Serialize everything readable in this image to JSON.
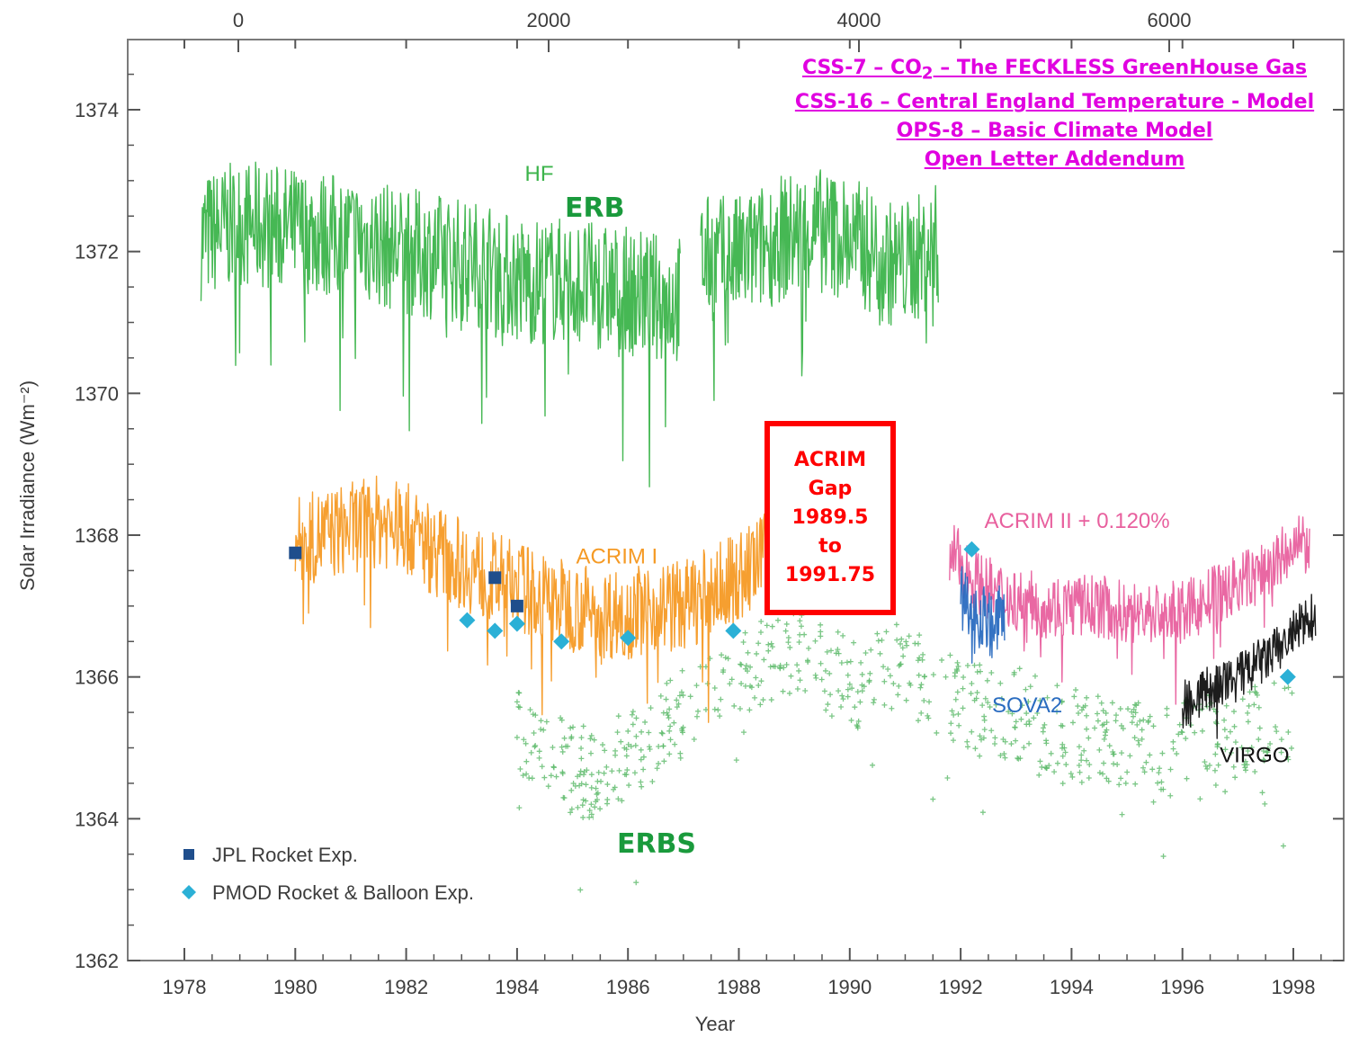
{
  "chart_data": {
    "type": "line",
    "title": "",
    "xlabel": "Year",
    "ylabel": "Solar Irradiance (Wm⁻²)",
    "xlim": [
      1977.8,
      1998.4
    ],
    "ylim": [
      1362,
      1375.2
    ],
    "x_ticks": [
      "1978",
      "1980",
      "1982",
      "1984",
      "1986",
      "1988",
      "1990",
      "1992",
      "1994",
      "1996",
      "1998"
    ],
    "y_ticks": [
      "1362",
      "1364",
      "1366",
      "1368",
      "1370",
      "1372",
      "1374"
    ],
    "top_axis_ticks": [
      "0",
      "2000",
      "4000",
      "6000"
    ],
    "series": [
      {
        "name": "HF",
        "color": "#3cb44b",
        "x": [
          1978.3,
          1979.0,
          1980.0,
          1981.0,
          1982.0,
          1982.8,
          1983.5,
          1984.0,
          1984.8,
          1985.5,
          1986.3,
          1986.9,
          1987.3,
          1988.0,
          1988.8,
          1989.5,
          1990.2,
          1990.8,
          1991.2,
          1991.6
        ],
        "y": [
          1372.2,
          1372.4,
          1372.3,
          1372.2,
          1372.0,
          1371.9,
          1371.8,
          1371.6,
          1371.6,
          1371.5,
          1371.4,
          1371.3,
          1371.9,
          1371.9,
          1372.2,
          1372.3,
          1372.1,
          1371.8,
          1371.9,
          1372.1
        ]
      },
      {
        "name": "ACRIM I",
        "color": "#f59a25",
        "x": [
          1980.0,
          1980.5,
          1981.0,
          1981.5,
          1982.0,
          1982.5,
          1983.0,
          1983.5,
          1984.0,
          1984.5,
          1985.0,
          1985.5,
          1986.0,
          1986.5,
          1987.0,
          1987.5,
          1988.0,
          1988.5,
          1989.0,
          1989.4
        ],
        "y": [
          1367.9,
          1368.0,
          1368.1,
          1368.2,
          1368.1,
          1367.8,
          1367.6,
          1367.4,
          1367.3,
          1367.1,
          1367.0,
          1366.9,
          1366.9,
          1367.0,
          1367.0,
          1367.2,
          1367.4,
          1367.7,
          1368.0,
          1368.2
        ]
      },
      {
        "name": "ACRIM II + 0.120%",
        "color": "#e8609e",
        "x": [
          1991.8,
          1992.2,
          1992.6,
          1993.0,
          1993.5,
          1994.0,
          1994.5,
          1995.0,
          1995.5,
          1996.0,
          1996.5,
          1997.0,
          1997.5,
          1998.0,
          1998.3
        ],
        "y": [
          1367.8,
          1367.4,
          1367.2,
          1367.1,
          1367.0,
          1367.0,
          1367.0,
          1366.9,
          1366.9,
          1366.9,
          1367.1,
          1367.3,
          1367.5,
          1367.8,
          1367.9
        ]
      },
      {
        "name": "SOVA2",
        "color": "#2a6cc0",
        "x": [
          1992.0,
          1992.2,
          1992.4,
          1992.6,
          1992.8
        ],
        "y": [
          1367.1,
          1366.8,
          1366.9,
          1366.7,
          1366.9
        ]
      },
      {
        "name": "VIRGO",
        "color": "#111111",
        "x": [
          1996.0,
          1996.4,
          1996.8,
          1997.2,
          1997.6,
          1998.0,
          1998.4
        ],
        "y": [
          1365.6,
          1365.8,
          1365.9,
          1366.1,
          1366.3,
          1366.6,
          1366.9
        ]
      },
      {
        "name": "ERBS",
        "color": "#5cba6a",
        "x": [
          1984.0,
          1984.5,
          1985.0,
          1985.5,
          1986.0,
          1986.5,
          1987.0,
          1987.5,
          1988.0,
          1988.5,
          1989.0,
          1989.5,
          1990.0,
          1990.5,
          1991.0,
          1991.5,
          1992.0,
          1992.5,
          1993.0,
          1993.5,
          1994.0,
          1994.5,
          1995.0,
          1995.5,
          1996.0,
          1996.5,
          1997.0,
          1997.5,
          1998.0
        ],
        "y": [
          1365.2,
          1364.9,
          1364.7,
          1364.6,
          1364.9,
          1365.2,
          1365.5,
          1365.8,
          1366.1,
          1366.3,
          1366.4,
          1366.2,
          1365.9,
          1366.0,
          1366.2,
          1365.8,
          1365.6,
          1365.5,
          1365.5,
          1365.3,
          1365.2,
          1365.1,
          1365.1,
          1365.0,
          1365.1,
          1365.1,
          1365.2,
          1365.3,
          1365.4
        ]
      }
    ],
    "markers": [
      {
        "name": "JPL Rocket Exp.",
        "shape": "square",
        "color": "#1f4e8c",
        "x": [
          1980.0,
          1983.6,
          1984.0
        ],
        "y": [
          1367.75,
          1367.4,
          1367.0
        ]
      },
      {
        "name": "PMOD Rocket & Balloon Exp.",
        "shape": "diamond",
        "color": "#2bb0d6",
        "x": [
          1983.1,
          1983.6,
          1984.0,
          1984.8,
          1986.0,
          1987.9,
          1992.2,
          1997.9
        ],
        "y": [
          1366.8,
          1366.65,
          1366.75,
          1366.5,
          1366.55,
          1366.65,
          1367.8,
          1366.0
        ]
      }
    ],
    "series_labels": [
      {
        "text": "HF",
        "x": 1984.4,
        "y": 1373.0,
        "color": "#3cb44b"
      },
      {
        "text": "ACRIM I",
        "x": 1985.8,
        "y": 1367.6,
        "color": "#f59a25"
      },
      {
        "text": "ACRIM II + 0.120%",
        "x": 1994.1,
        "y": 1368.1,
        "color": "#e8609e"
      },
      {
        "text": "SOVA2",
        "x": 1993.2,
        "y": 1365.5,
        "color": "#2a6cc0"
      },
      {
        "text": "VIRGO",
        "x": 1997.3,
        "y": 1364.8,
        "color": "#111111"
      }
    ],
    "legend": {
      "placement": "bottom-left",
      "entries": [
        "JPL Rocket Exp.",
        "PMOD Rocket & Balloon Exp."
      ]
    },
    "grid": false
  },
  "annotations": {
    "erb_label": "ERB",
    "erbs_label": "ERBS",
    "gap_text": "ACRIM\nGap\n1989.5\nto\n1991.75",
    "links": [
      {
        "prefix": "CSS-7 – CO",
        "sub": "2",
        "suffix": " – The FECKLESS GreenHouse Gas"
      },
      {
        "prefix": "CSS-16 – Central England Temperature - Model",
        "sub": "",
        "suffix": ""
      },
      {
        "prefix": "OPS-8 – Basic Climate Model",
        "sub": "",
        "suffix": ""
      },
      {
        "prefix": "Open Letter Addendum",
        "sub": "",
        "suffix": ""
      }
    ]
  }
}
